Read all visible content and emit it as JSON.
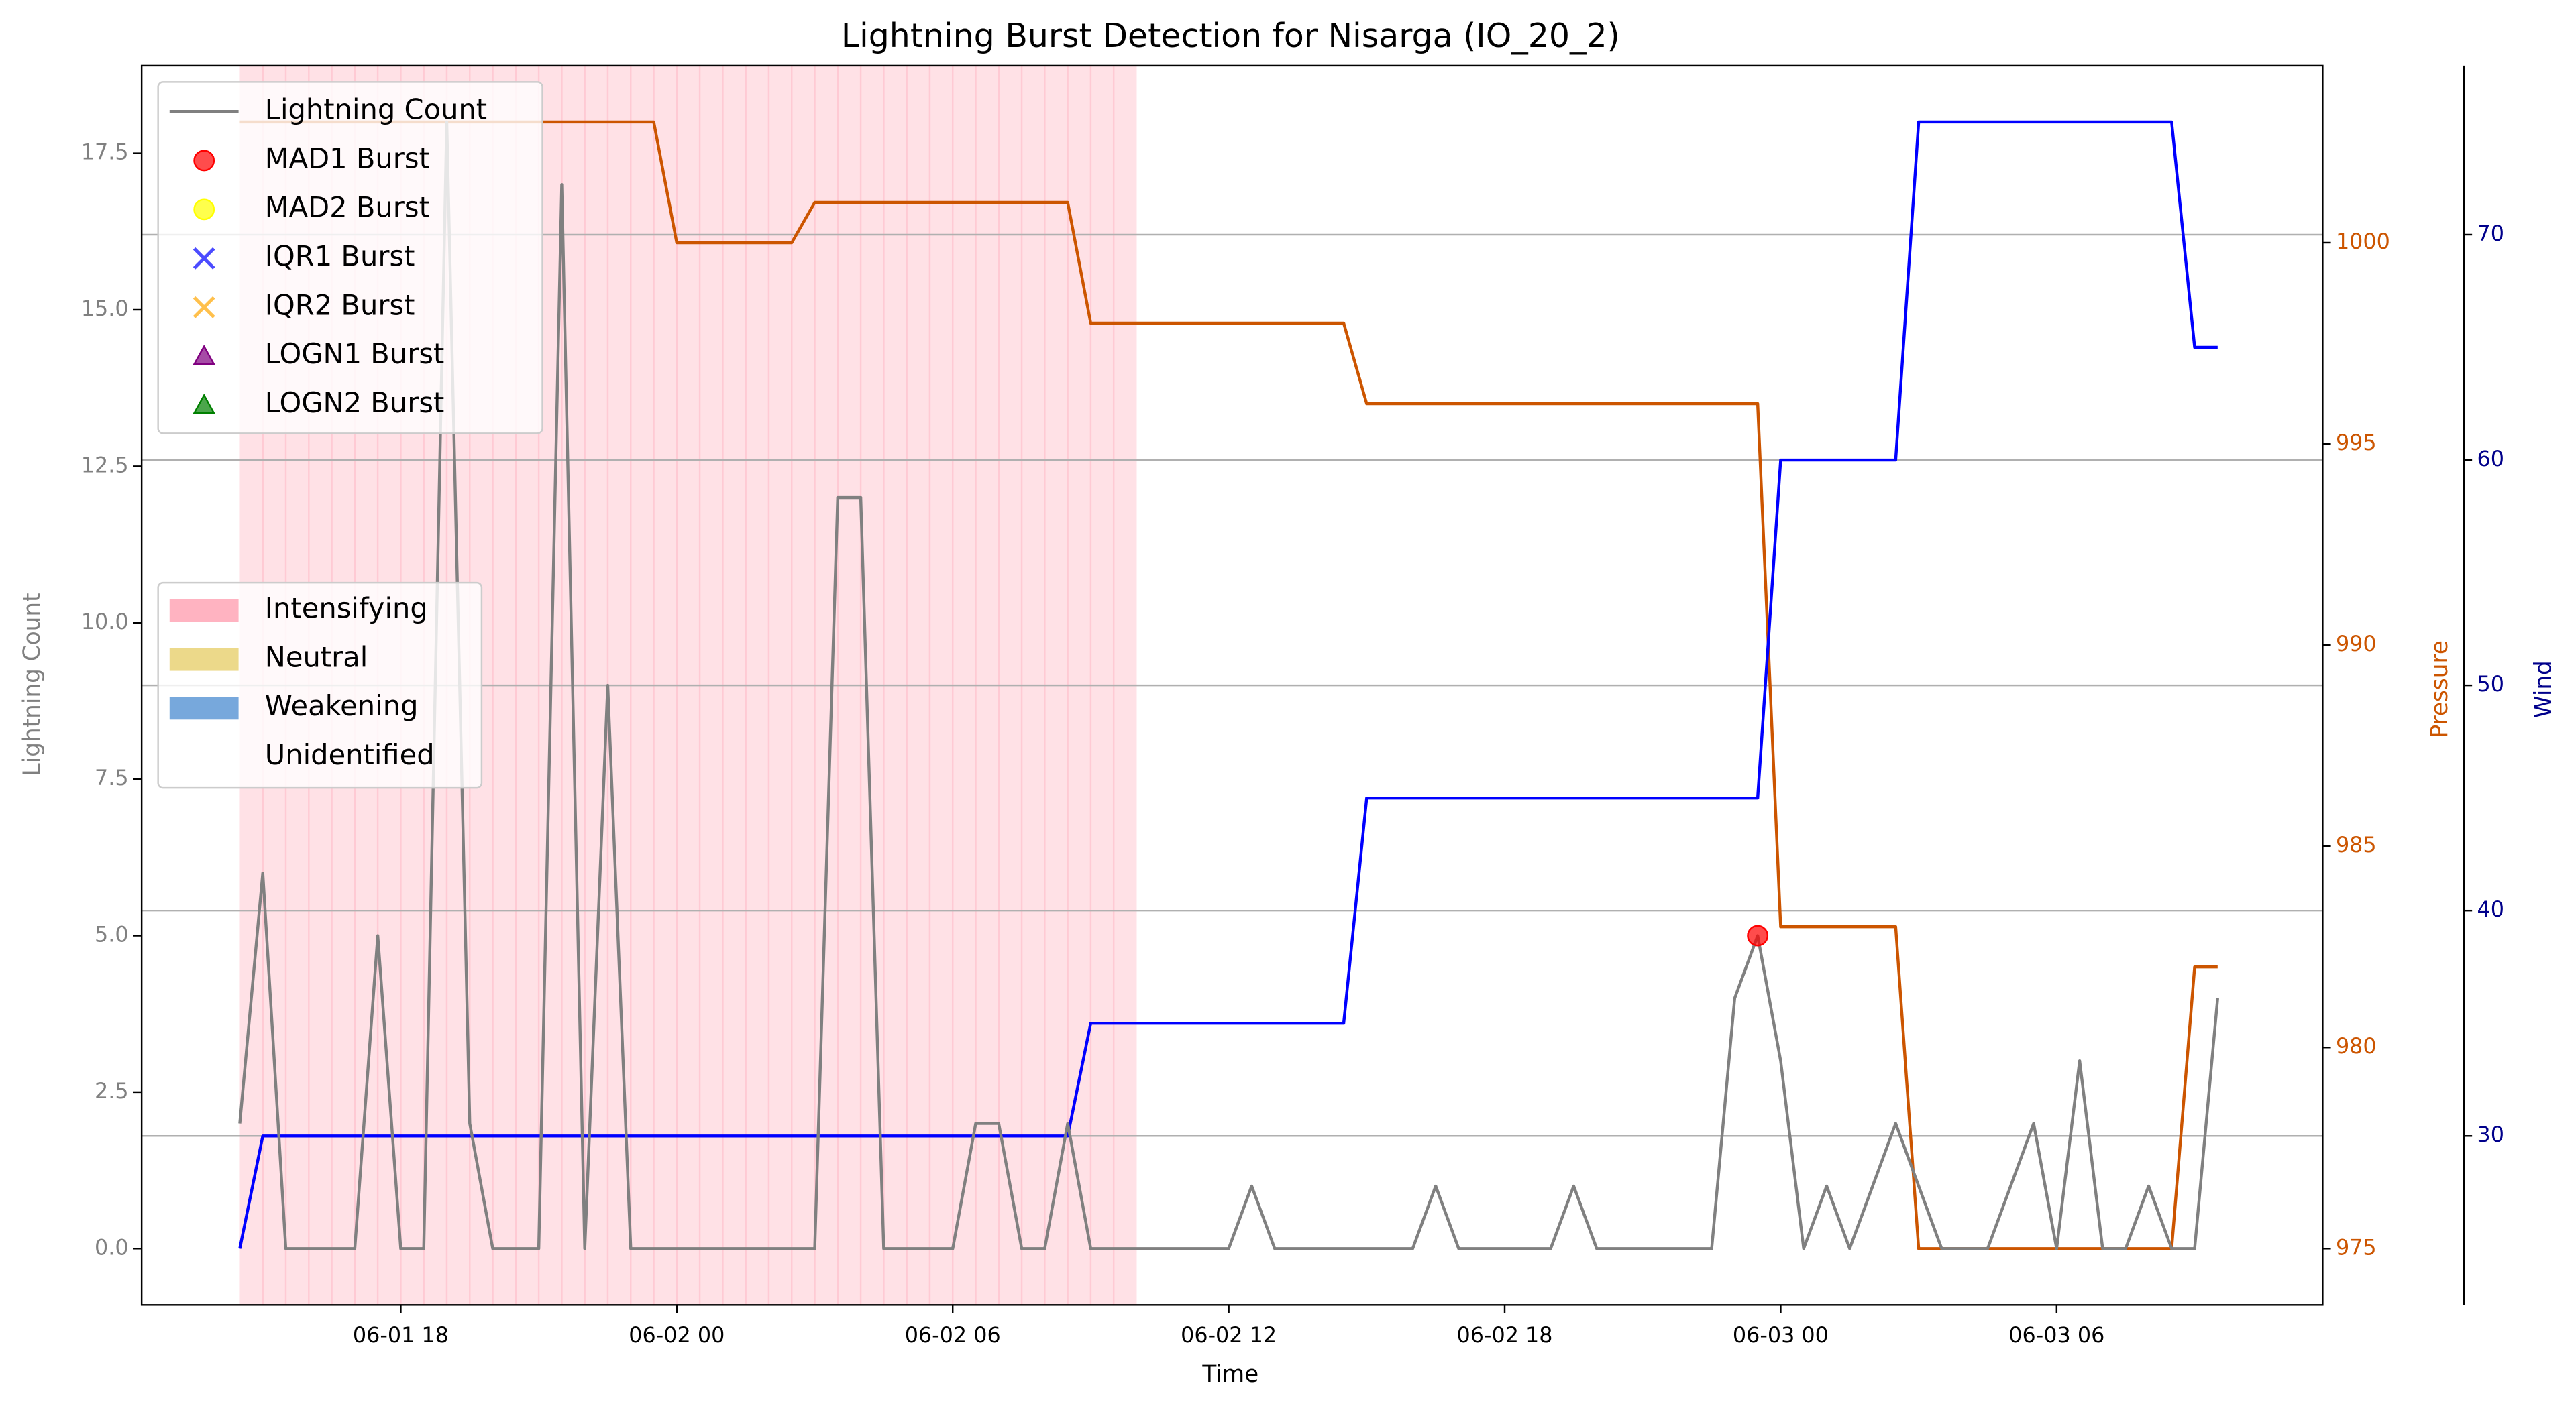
{
  "chart_data": {
    "type": "line",
    "title": "Lightning Burst Detection for Nisarga (IO_20_2)",
    "xlabel": "Time",
    "ylabel": "Lightning Count",
    "y2label": "Pressure",
    "y3label": "Wind",
    "x": [
      "06-01 14:30",
      "06-01 15:00",
      "06-01 15:30",
      "06-01 16:00",
      "06-01 16:30",
      "06-01 17:00",
      "06-01 17:30",
      "06-01 18:00",
      "06-01 18:30",
      "06-01 19:00",
      "06-01 19:30",
      "06-01 20:00",
      "06-01 20:30",
      "06-01 21:00",
      "06-01 21:30",
      "06-01 22:00",
      "06-01 22:30",
      "06-01 23:00",
      "06-01 23:30",
      "06-02 00:00",
      "06-02 00:30",
      "06-02 01:00",
      "06-02 01:30",
      "06-02 02:00",
      "06-02 02:30",
      "06-02 03:00",
      "06-02 03:30",
      "06-02 04:00",
      "06-02 04:30",
      "06-02 05:00",
      "06-02 05:30",
      "06-02 06:00",
      "06-02 06:30",
      "06-02 07:00",
      "06-02 07:30",
      "06-02 08:00",
      "06-02 08:30",
      "06-02 09:00",
      "06-02 09:30",
      "06-02 10:00",
      "06-02 10:30",
      "06-02 11:00",
      "06-02 11:30",
      "06-02 12:00",
      "06-02 12:30",
      "06-02 13:00",
      "06-02 13:30",
      "06-02 14:00",
      "06-02 14:30",
      "06-02 15:00",
      "06-02 15:30",
      "06-02 16:00",
      "06-02 16:30",
      "06-02 17:00",
      "06-02 17:30",
      "06-02 18:00",
      "06-02 18:30",
      "06-02 19:00",
      "06-02 19:30",
      "06-02 20:00",
      "06-02 20:30",
      "06-02 21:00",
      "06-02 21:30",
      "06-02 22:00",
      "06-02 22:30",
      "06-02 23:00",
      "06-02 23:30",
      "06-03 00:00",
      "06-03 00:30",
      "06-03 01:00",
      "06-03 01:30",
      "06-03 02:00",
      "06-03 02:30",
      "06-03 03:00",
      "06-03 03:30",
      "06-03 04:00",
      "06-03 04:30",
      "06-03 05:00",
      "06-03 05:30",
      "06-03 06:00",
      "06-03 06:30",
      "06-03 07:00",
      "06-03 07:30",
      "06-03 08:00",
      "06-03 08:30",
      "06-03 09:00",
      "06-03 09:30"
    ],
    "series": [
      {
        "name": "Lightning Count",
        "color": "#808080",
        "values": [
          2,
          6,
          0,
          0,
          0,
          0,
          5,
          0,
          0,
          18,
          2,
          0,
          0,
          0,
          17,
          0,
          9,
          0,
          0,
          0,
          0,
          0,
          0,
          0,
          0,
          0,
          12,
          12,
          0,
          0,
          0,
          0,
          2,
          2,
          0,
          0,
          2,
          0,
          0,
          0,
          0,
          0,
          0,
          0,
          1,
          0,
          0,
          0,
          0,
          0,
          0,
          0,
          1,
          0,
          0,
          0,
          0,
          0,
          1,
          0,
          0,
          0,
          0,
          0,
          0,
          4,
          5,
          3,
          0,
          1,
          0,
          1,
          2,
          1,
          0,
          0,
          0,
          1,
          2,
          0,
          3,
          0,
          0,
          1,
          0,
          0,
          4
        ]
      }
    ],
    "pressure": {
      "color": "#cc5500",
      "axis": "y2",
      "values": [
        1003,
        1003,
        1003,
        1003,
        1003,
        1003,
        1003,
        1003,
        1003,
        1003,
        1003,
        1003,
        1003,
        1003,
        1003,
        1003,
        1003,
        1003,
        1003,
        1000,
        1000,
        1000,
        1000,
        1000,
        1000,
        1001,
        1001,
        1001,
        1001,
        1001,
        1001,
        1001,
        1001,
        1001,
        1001,
        1001,
        1001,
        998,
        998,
        998,
        998,
        998,
        998,
        998,
        998,
        998,
        998,
        998,
        998,
        996,
        996,
        996,
        996,
        996,
        996,
        996,
        996,
        996,
        996,
        996,
        996,
        996,
        996,
        996,
        996,
        996,
        996,
        983,
        983,
        983,
        983,
        983,
        983,
        975,
        975,
        975,
        975,
        975,
        975,
        975,
        975,
        975,
        975,
        975,
        975,
        982,
        982
      ]
    },
    "wind": {
      "color": "#0000ff",
      "axis": "y3",
      "values": [
        25,
        30,
        30,
        30,
        30,
        30,
        30,
        30,
        30,
        30,
        30,
        30,
        30,
        30,
        30,
        30,
        30,
        30,
        30,
        30,
        30,
        30,
        30,
        30,
        30,
        30,
        30,
        30,
        30,
        30,
        30,
        30,
        30,
        30,
        30,
        30,
        30,
        35,
        35,
        35,
        35,
        35,
        35,
        35,
        35,
        35,
        35,
        35,
        35,
        45,
        45,
        45,
        45,
        45,
        45,
        45,
        45,
        45,
        45,
        45,
        45,
        45,
        45,
        45,
        45,
        45,
        45,
        60,
        60,
        60,
        60,
        60,
        60,
        75,
        75,
        75,
        75,
        75,
        75,
        75,
        75,
        75,
        75,
        75,
        75,
        65,
        65
      ]
    },
    "bursts": [
      {
        "name": "MAD1 Burst",
        "color": "#ff0000",
        "marker": "circle",
        "x": [
          "06-02 23:30"
        ],
        "values": [
          5
        ]
      },
      {
        "name": "MAD2 Burst",
        "color": "#ffff00",
        "marker": "circle",
        "x": [],
        "values": []
      },
      {
        "name": "IQR1 Burst",
        "color": "#0000ff",
        "marker": "x",
        "x": [],
        "values": []
      },
      {
        "name": "IQR2 Burst",
        "color": "#ffa500",
        "marker": "x",
        "x": [],
        "values": []
      },
      {
        "name": "LOGN1 Burst",
        "color": "#800080",
        "marker": "triangle",
        "x": [],
        "values": []
      },
      {
        "name": "LOGN2 Burst",
        "color": "#008000",
        "marker": "triangle",
        "x": [],
        "values": []
      }
    ],
    "stages": [
      {
        "name": "Intensifying",
        "color": "#ffb3c1",
        "spans": [
          [
            "06-01 14:30",
            "06-02 10:00"
          ]
        ]
      },
      {
        "name": "Neutral",
        "color": "#ecd98a",
        "spans": []
      },
      {
        "name": "Weakening",
        "color": "#77a8dc",
        "spans": []
      },
      {
        "name": "Unidentified",
        "color": "#ffffff",
        "spans": []
      }
    ],
    "xlim": [
      "06-01 12:22",
      "06-03 11:47"
    ],
    "xticks": [
      {
        "value": "06-01 18:00",
        "label": "06-01 18"
      },
      {
        "value": "06-02 00:00",
        "label": "06-02 00"
      },
      {
        "value": "06-02 06:00",
        "label": "06-02 06"
      },
      {
        "value": "06-02 12:00",
        "label": "06-02 12"
      },
      {
        "value": "06-02 18:00",
        "label": "06-02 18"
      },
      {
        "value": "06-03 00:00",
        "label": "06-03 00"
      },
      {
        "value": "06-03 06:00",
        "label": "06-03 06"
      }
    ],
    "ylim": [
      -0.9,
      18.9
    ],
    "yticks": [
      {
        "value": 0,
        "label": "0.0"
      },
      2.5,
      {
        "value": 5,
        "label": "5.0"
      },
      7.5,
      {
        "value": 10,
        "label": "10.0"
      },
      12.5,
      {
        "value": 15,
        "label": "15.0"
      },
      17.5
    ],
    "y2lim": [
      973.6,
      1004.4
    ],
    "y2ticks": [
      975,
      980,
      985,
      990,
      995,
      1000
    ],
    "y3lim": [
      22.5,
      77.5
    ],
    "y3ticks": [
      30,
      40,
      50,
      60,
      70
    ],
    "grid": true
  }
}
